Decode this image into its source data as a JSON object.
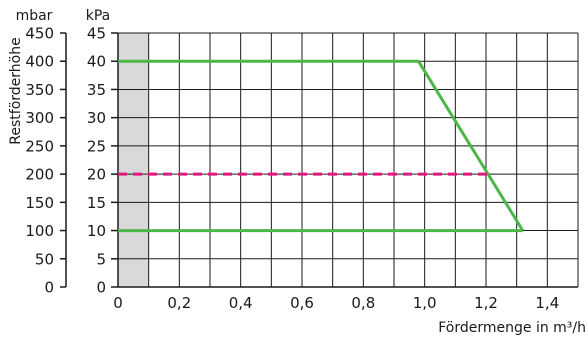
{
  "chart_data": {
    "type": "line",
    "unit_left": "mbar",
    "unit_right": "kPa",
    "ylabel": "Restförderhöhe",
    "xlabel": "Fördermenge in m³/h",
    "xlim": [
      0,
      1.5
    ],
    "ylim_kpa": [
      0,
      45
    ],
    "grid": true,
    "x_ticks": [
      "0",
      "0,2",
      "0,4",
      "0,6",
      "0,8",
      "1,0",
      "1,2",
      "1,4"
    ],
    "y_ticks_mbar": [
      "0",
      "50",
      "100",
      "150",
      "200",
      "250",
      "300",
      "350",
      "400",
      "450"
    ],
    "y_ticks_kpa": [
      "0",
      "5",
      "10",
      "15",
      "20",
      "25",
      "30",
      "35",
      "40",
      "45"
    ],
    "shaded_region": {
      "x_from": 0,
      "x_to": 0.1,
      "color": "#d9d9d9"
    },
    "series": [
      {
        "style": "solid",
        "color": "#4cb748",
        "points": [
          [
            0,
            40
          ],
          [
            0.98,
            40
          ],
          [
            1.32,
            10
          ]
        ]
      },
      {
        "style": "solid",
        "color": "#4cb748",
        "points": [
          [
            0,
            10
          ],
          [
            1.32,
            10
          ]
        ]
      },
      {
        "style": "dashed",
        "color": "#e0197d",
        "points": [
          [
            0,
            20
          ],
          [
            1.22,
            20
          ]
        ]
      }
    ]
  }
}
